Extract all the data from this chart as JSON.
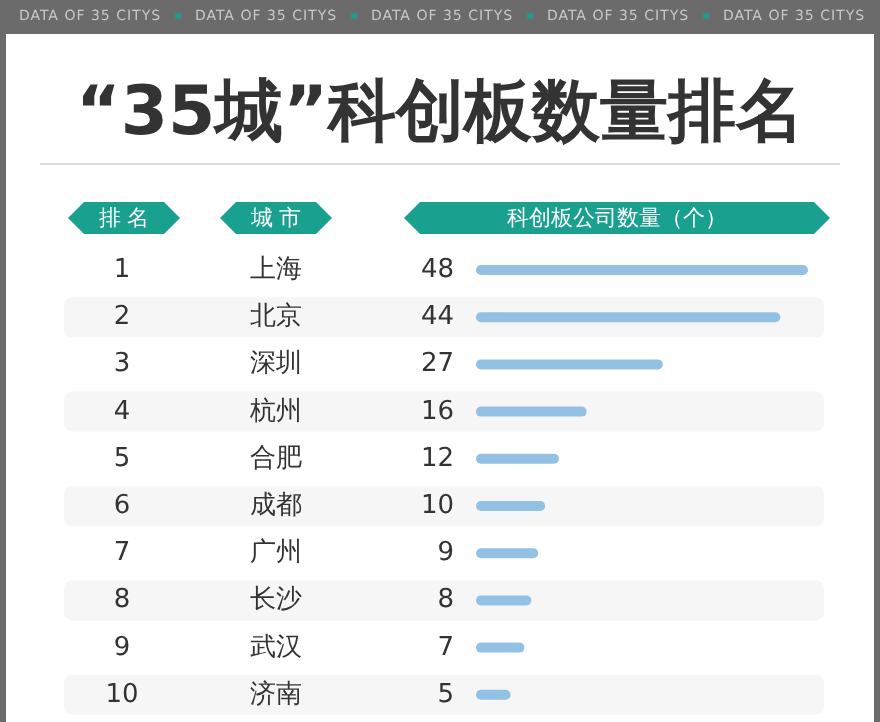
{
  "chart_data": {
    "type": "bar",
    "orientation": "horizontal",
    "title": "“35城”科创板数量排名",
    "xlabel": "科创板公司数量（个）",
    "categories": [
      "上海",
      "北京",
      "深圳",
      "杭州",
      "合肥",
      "成都",
      "广州",
      "长沙",
      "武汉",
      "济南"
    ],
    "values": [
      48,
      44,
      27,
      16,
      12,
      10,
      9,
      8,
      7,
      5
    ],
    "color": "#93c1e3",
    "data_labels": true,
    "annotations": [
      "DATA OF 35 CITYS",
      "排 名",
      "城 市",
      "1",
      "2",
      "3",
      "4",
      "5",
      "6",
      "7",
      "8",
      "9",
      "10"
    ]
  }
}
